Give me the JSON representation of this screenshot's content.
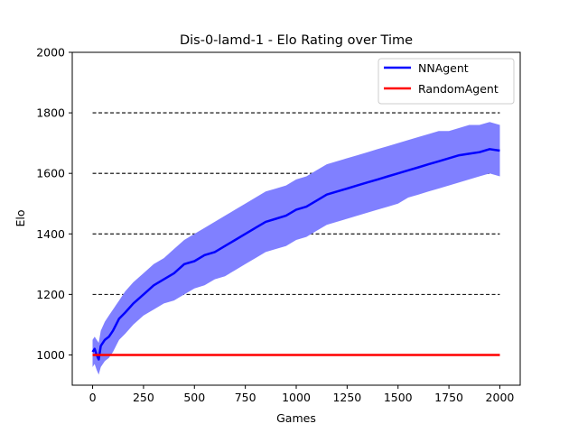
{
  "chart_data": {
    "type": "line",
    "title": "Dis-0-lamd-1 - Elo Rating over Time",
    "xlabel": "Games",
    "ylabel": "Elo",
    "xlim": [
      -100,
      2100
    ],
    "ylim": [
      900,
      2000
    ],
    "xticks": [
      "0",
      "250",
      "500",
      "750",
      "1000",
      "1250",
      "1500",
      "1750",
      "2000"
    ],
    "yticks": [
      "1000",
      "1200",
      "1400",
      "1600",
      "1800",
      "2000"
    ],
    "reference_lines": [
      1200,
      1400,
      1600,
      1800
    ],
    "legend_position": "top-right",
    "series": [
      {
        "name": "NNAgent",
        "color": "#0000ff",
        "x": [
          0,
          10,
          20,
          30,
          40,
          60,
          80,
          100,
          130,
          160,
          200,
          250,
          300,
          350,
          400,
          450,
          500,
          550,
          600,
          650,
          700,
          750,
          800,
          850,
          900,
          950,
          1000,
          1050,
          1100,
          1150,
          1200,
          1250,
          1300,
          1350,
          1400,
          1450,
          1500,
          1550,
          1600,
          1650,
          1700,
          1750,
          1800,
          1850,
          1900,
          1950,
          2000
        ],
        "values": [
          1010,
          1020,
          1000,
          985,
          1030,
          1050,
          1060,
          1080,
          1120,
          1140,
          1170,
          1200,
          1230,
          1250,
          1270,
          1300,
          1310,
          1330,
          1340,
          1360,
          1380,
          1400,
          1420,
          1440,
          1450,
          1460,
          1480,
          1490,
          1510,
          1530,
          1540,
          1550,
          1560,
          1570,
          1580,
          1590,
          1600,
          1610,
          1620,
          1630,
          1640,
          1650,
          1660,
          1665,
          1670,
          1680,
          1675
        ],
        "lower": [
          960,
          970,
          950,
          935,
          960,
          980,
          990,
          1010,
          1050,
          1070,
          1100,
          1130,
          1150,
          1170,
          1180,
          1200,
          1220,
          1230,
          1250,
          1260,
          1280,
          1300,
          1320,
          1340,
          1350,
          1360,
          1380,
          1390,
          1410,
          1430,
          1440,
          1450,
          1460,
          1470,
          1480,
          1490,
          1500,
          1520,
          1530,
          1540,
          1550,
          1560,
          1570,
          1580,
          1590,
          1600,
          1590
        ],
        "upper": [
          1050,
          1060,
          1050,
          1040,
          1080,
          1110,
          1130,
          1150,
          1180,
          1210,
          1240,
          1270,
          1300,
          1320,
          1350,
          1380,
          1400,
          1420,
          1440,
          1460,
          1480,
          1500,
          1520,
          1540,
          1550,
          1560,
          1580,
          1590,
          1610,
          1630,
          1640,
          1650,
          1660,
          1670,
          1680,
          1690,
          1700,
          1710,
          1720,
          1730,
          1740,
          1740,
          1750,
          1760,
          1760,
          1770,
          1760
        ]
      },
      {
        "name": "RandomAgent",
        "color": "#ff0000",
        "x": [
          0,
          2000
        ],
        "values": [
          1000,
          1000
        ]
      }
    ],
    "band_color": "#8080ff"
  }
}
